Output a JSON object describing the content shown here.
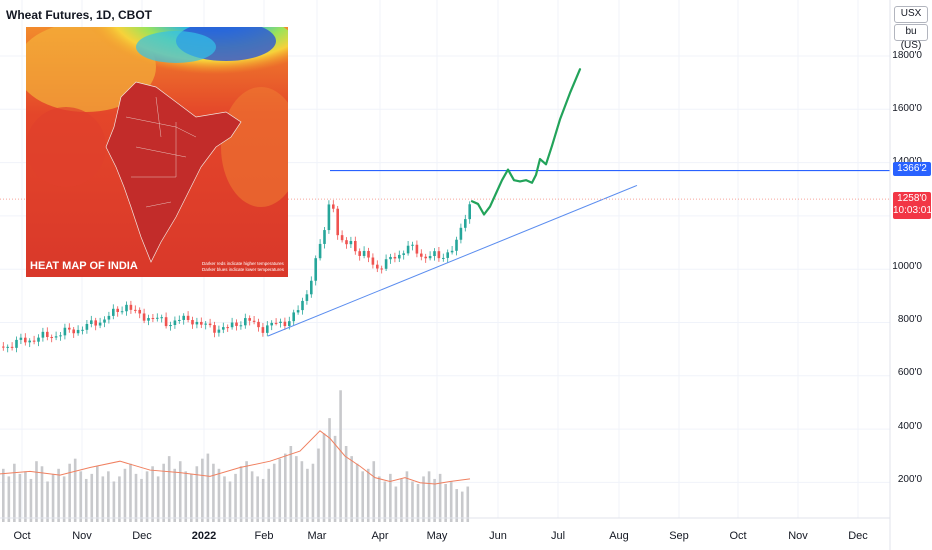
{
  "symbol": {
    "title": "Wheat Futures, 1D, CBOT"
  },
  "units": {
    "currency": "USX",
    "quantity": "bu (US)"
  },
  "y_axis": {
    "ticks": [
      "1800'0",
      "1600'0",
      "1400'0",
      "1000'0",
      "800'0",
      "600'0",
      "400'0",
      "200'0"
    ]
  },
  "x_axis": {
    "ticks": [
      "Oct",
      "Nov",
      "Dec",
      "2022",
      "Feb",
      "Mar",
      "Apr",
      "May",
      "Jun",
      "Jul",
      "Aug",
      "Sep",
      "Oct",
      "Nov",
      "Dec"
    ]
  },
  "price_labels": {
    "level": "1366'2",
    "last_price": "1258'0",
    "countdown": "10:03:01"
  },
  "heatmap": {
    "title": "HEAT MAP OF INDIA",
    "note_line1": "Darker reds indicate higher temperatures",
    "note_line2": "Darker blues indicate lower temperatures"
  },
  "colors": {
    "up": "#26a69a",
    "down": "#ef5350",
    "level_line": "#2962ff",
    "trend_line": "#5b8def",
    "projection": "#22a35a",
    "volume_bar": "#c8c9cc",
    "volume_ma": "#f08060",
    "last_price_line": "#f7a59a"
  },
  "chart_data": {
    "type": "candlestick",
    "price_axis": {
      "min": 600,
      "max": 1800
    },
    "level": 1366.25,
    "last": 1258,
    "price_series": [
      [
        0,
        700
      ],
      [
        8,
        705
      ],
      [
        20,
        720
      ],
      [
        40,
        735
      ],
      [
        55,
        745
      ],
      [
        70,
        760
      ],
      [
        85,
        775
      ],
      [
        100,
        800
      ],
      [
        115,
        830
      ],
      [
        125,
        860
      ],
      [
        135,
        820
      ],
      [
        150,
        810
      ],
      [
        165,
        790
      ],
      [
        180,
        800
      ],
      [
        190,
        805
      ],
      [
        200,
        780
      ],
      [
        215,
        770
      ],
      [
        225,
        765
      ],
      [
        235,
        790
      ],
      [
        245,
        800
      ],
      [
        260,
        770
      ],
      [
        270,
        780
      ],
      [
        280,
        790
      ],
      [
        290,
        805
      ],
      [
        298,
        840
      ],
      [
        305,
        900
      ],
      [
        312,
        990
      ],
      [
        318,
        1070
      ],
      [
        324,
        1150
      ],
      [
        330,
        1300
      ],
      [
        336,
        1120
      ],
      [
        342,
        1080
      ],
      [
        350,
        1100
      ],
      [
        358,
        1050
      ],
      [
        366,
        1040
      ],
      [
        374,
        1000
      ],
      [
        382,
        1010
      ],
      [
        390,
        1030
      ],
      [
        398,
        1050
      ],
      [
        406,
        1080
      ],
      [
        414,
        1060
      ],
      [
        422,
        1040
      ],
      [
        430,
        1050
      ],
      [
        438,
        1030
      ],
      [
        446,
        1060
      ],
      [
        454,
        1080
      ],
      [
        460,
        1140
      ],
      [
        466,
        1220
      ],
      [
        470,
        1260
      ]
    ],
    "projection": [
      [
        472,
        1250
      ],
      [
        478,
        1240
      ],
      [
        484,
        1200
      ],
      [
        490,
        1230
      ],
      [
        496,
        1280
      ],
      [
        502,
        1330
      ],
      [
        508,
        1370
      ],
      [
        514,
        1330
      ],
      [
        520,
        1325
      ],
      [
        526,
        1330
      ],
      [
        532,
        1320
      ],
      [
        536,
        1350
      ],
      [
        540,
        1410
      ],
      [
        546,
        1390
      ],
      [
        552,
        1460
      ],
      [
        560,
        1560
      ],
      [
        570,
        1660
      ],
      [
        580,
        1750
      ]
    ],
    "volume_axis": {
      "min": 0,
      "max": 600
    },
    "volume": [
      210,
      180,
      230,
      190,
      200,
      170,
      240,
      220,
      160,
      190,
      210,
      180,
      230,
      250,
      200,
      170,
      190,
      220,
      180,
      200,
      160,
      180,
      210,
      230,
      190,
      170,
      200,
      220,
      180,
      230,
      260,
      210,
      240,
      200,
      190,
      220,
      250,
      270,
      230,
      210,
      180,
      160,
      190,
      220,
      240,
      200,
      180,
      170,
      210,
      230,
      250,
      270,
      300,
      260,
      240,
      210,
      230,
      290,
      350,
      410,
      340,
      520,
      300,
      260,
      230,
      200,
      210,
      240,
      180,
      160,
      190,
      140,
      170,
      200,
      160,
      150,
      180,
      200,
      170,
      190,
      150,
      160,
      130,
      120,
      140
    ],
    "volume_ma": [
      [
        0,
        190
      ],
      [
        30,
        200
      ],
      [
        60,
        185
      ],
      [
        90,
        215
      ],
      [
        120,
        240
      ],
      [
        150,
        205
      ],
      [
        180,
        195
      ],
      [
        210,
        180
      ],
      [
        240,
        215
      ],
      [
        270,
        240
      ],
      [
        300,
        280
      ],
      [
        320,
        360
      ],
      [
        330,
        330
      ],
      [
        345,
        260
      ],
      [
        360,
        220
      ],
      [
        375,
        175
      ],
      [
        390,
        160
      ],
      [
        405,
        175
      ],
      [
        420,
        155
      ],
      [
        435,
        150
      ],
      [
        450,
        160
      ],
      [
        470,
        170
      ]
    ]
  }
}
